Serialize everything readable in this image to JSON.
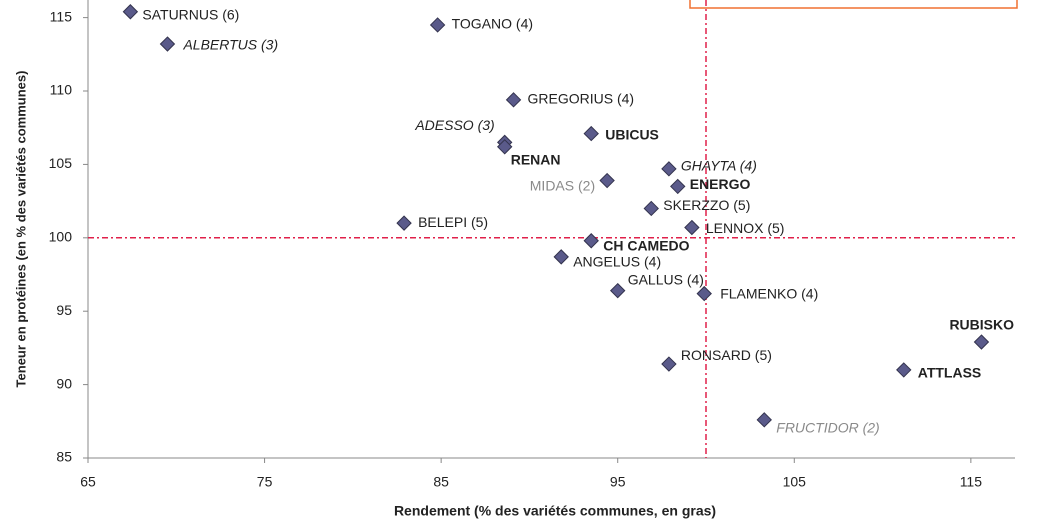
{
  "chart_data": {
    "type": "scatter",
    "xlabel": "Rendement (% des variétés communes, en gras)",
    "ylabel": "Teneur en protéines (en % des variétés communes)",
    "xlim": [
      65,
      117.5
    ],
    "ylim": [
      85,
      116.2
    ],
    "xticks": [
      65,
      75,
      85,
      95,
      105,
      115
    ],
    "yticks": [
      85,
      90,
      95,
      100,
      105,
      110,
      115
    ],
    "reference_lines": {
      "x": 100,
      "y": 100,
      "color": "#e0204a"
    },
    "color": "#5a5a8a",
    "labels": [
      "SATURNUS (6)",
      "ALBERTUS (3)",
      "TOGANO (4)",
      "GREGORIUS (4)",
      "UBICUS",
      "ADESSO (3)",
      "RENAN",
      "GHAYTA (4)",
      "MIDAS (2)",
      "ENERGO",
      "SKERZZO (5)",
      "BELEPI (5)",
      "LENNOX (5)",
      "CH CAMEDO",
      "ANGELUS (4)",
      "GALLUS (4)",
      "FLAMENKO (4)",
      "RUBISKO",
      "RONSARD (5)",
      "ATTLASS",
      "FRUCTIDOR (2)"
    ],
    "label_styles": [
      "normal",
      "italic",
      "normal",
      "normal",
      "bold",
      "italic",
      "bold",
      "italic",
      "gray",
      "bold",
      "normal",
      "normal",
      "normal",
      "bold",
      "normal",
      "normal",
      "normal",
      "bold",
      "normal",
      "bold",
      "gray-italic"
    ],
    "x": [
      67.4,
      69.5,
      84.8,
      89.1,
      93.5,
      88.6,
      88.6,
      97.9,
      94.4,
      98.4,
      96.9,
      82.9,
      99.2,
      93.5,
      91.8,
      95.0,
      99.9,
      115.6,
      97.9,
      111.2,
      103.3
    ],
    "values": [
      115.4,
      113.2,
      114.5,
      109.4,
      107.1,
      106.5,
      106.2,
      104.7,
      103.9,
      103.5,
      102.0,
      101.0,
      100.7,
      99.8,
      98.7,
      96.4,
      96.2,
      92.9,
      91.4,
      91.0,
      87.6
    ]
  }
}
